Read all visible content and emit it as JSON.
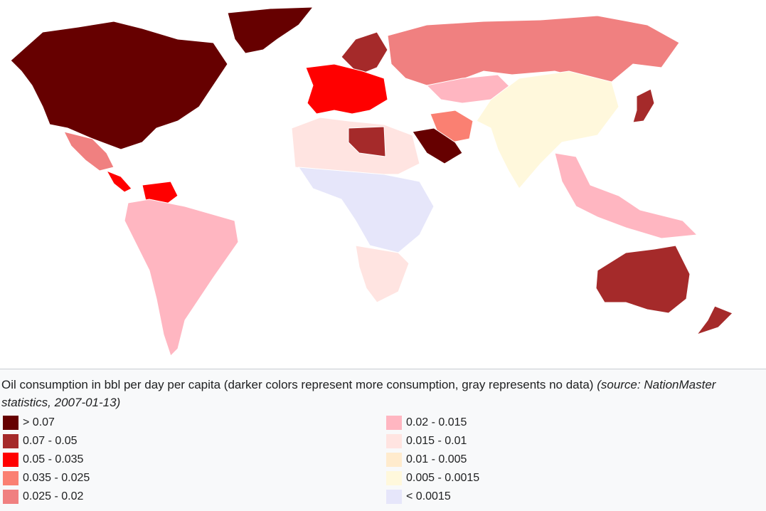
{
  "caption": {
    "text": "Oil consumption in bbl per day per capita (darker colors represent more consumption, gray represents no data)",
    "source": "(source: NationMaster statistics, 2007-01-13)"
  },
  "legend": {
    "left": [
      {
        "label": "> 0.07",
        "color": "#660000"
      },
      {
        "label": "0.07 - 0.05",
        "color": "#a52a2a"
      },
      {
        "label": "0.05 - 0.035",
        "color": "#ff0000"
      },
      {
        "label": "0.035 - 0.025",
        "color": "#fa8072"
      },
      {
        "label": "0.025 - 0.02",
        "color": "#f08080"
      }
    ],
    "right": [
      {
        "label": "0.02 - 0.015",
        "color": "#ffb6c1"
      },
      {
        "label": "0.015 - 0.01",
        "color": "#ffe4e1"
      },
      {
        "label": "0.01 - 0.005",
        "color": "#ffebcd"
      },
      {
        "label": "0.005 - 0.0015",
        "color": "#fff8dc"
      },
      {
        "label": "< 0.0015",
        "color": "#e6e6fa"
      }
    ]
  },
  "map": {
    "regions": [
      {
        "name": "north-america-canada-usa",
        "class": "> 0.07"
      },
      {
        "name": "greenland",
        "class": "> 0.07"
      },
      {
        "name": "mexico",
        "class": "0.025 - 0.02"
      },
      {
        "name": "central-america",
        "class": "0.05 - 0.035"
      },
      {
        "name": "venezuela",
        "class": "0.05 - 0.035"
      },
      {
        "name": "south-america",
        "class": "0.02 - 0.015"
      },
      {
        "name": "western-europe",
        "class": "0.05 - 0.035"
      },
      {
        "name": "scandinavia",
        "class": "0.07 - 0.05"
      },
      {
        "name": "russia",
        "class": "0.025 - 0.02"
      },
      {
        "name": "central-asia",
        "class": "0.02 - 0.015"
      },
      {
        "name": "china-india",
        "class": "0.005 - 0.0015"
      },
      {
        "name": "middle-east-saudi",
        "class": "> 0.07"
      },
      {
        "name": "iran",
        "class": "0.035 - 0.025"
      },
      {
        "name": "libya",
        "class": "0.07 - 0.05"
      },
      {
        "name": "north-africa",
        "class": "0.015 - 0.01"
      },
      {
        "name": "central-africa",
        "class": "< 0.0015"
      },
      {
        "name": "southern-africa",
        "class": "0.015 - 0.01"
      },
      {
        "name": "japan",
        "class": "0.07 - 0.05"
      },
      {
        "name": "southeast-asia",
        "class": "0.02 - 0.015"
      },
      {
        "name": "australia",
        "class": "0.07 - 0.05"
      },
      {
        "name": "new-zealand",
        "class": "0.07 - 0.05"
      }
    ]
  }
}
